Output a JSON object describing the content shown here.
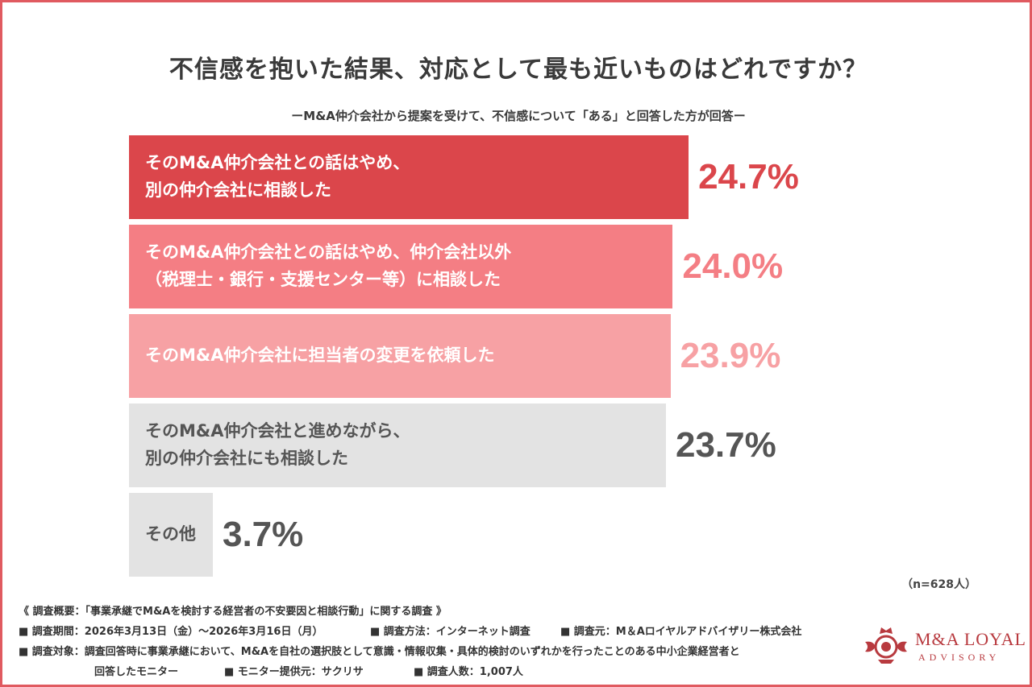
{
  "chart_data": {
    "type": "bar",
    "orientation": "horizontal",
    "title": "不信感を抱いた結果、対応として最も近いものはどれですか？",
    "subtitle": "ーM&A仲介会社から提案を受けて、不信感について「ある」と回答した方が回答ー",
    "categories": [
      "そのM&A仲介会社との話はやめ、\n別の仲介会社に相談した",
      "そのM&A仲介会社との話はやめ、仲介会社以外\n（税理士・銀行・支援センター等）に相談した",
      "そのM&A仲介会社に担当者の変更を依頼した",
      "そのM&A仲介会社と進めながら、\n別の仲介会社にも相談した",
      "その他"
    ],
    "values": [
      24.7,
      24.0,
      23.9,
      23.7,
      3.7
    ],
    "value_labels": [
      "24.7%",
      "24.0%",
      "23.9%",
      "23.7%",
      "3.7%"
    ],
    "bar_colors": [
      "#db464b",
      "#f47e84",
      "#f7a1a4",
      "#e3e3e3",
      "#e3e3e3"
    ],
    "label_colors": [
      "#ffffff",
      "#ffffff",
      "#ffffff",
      "#555555",
      "#555555"
    ],
    "value_colors": [
      "#db464b",
      "#f47e84",
      "#f7a1a4",
      "#555555",
      "#555555"
    ],
    "sample": "（n=628人）"
  },
  "notes": {
    "summary": "《 調査概要：「事業承継でM&Aを検討する経営者の不安要因と相談行動」に関する調査 》",
    "period": "■ 調査期間：2026年3月13日（金）〜2026年3月16日（月）",
    "method": "■ 調査方法：インターネット調査",
    "organizer": "■ 調査元：M＆Aロイヤルアドバイザリー株式会社",
    "target": "■ 調査対象：調査回答時に事業承継において、M&Aを自社の選択肢として意識・情報収集・具体的検討のいずれかを行ったことのある中小企業経営者と",
    "target_cont": "回答したモニター",
    "provider": "■ モニター提供元：サクリサ",
    "count": "■ 調査人数：1,007人"
  },
  "logo": {
    "name": "M&A LOYAL",
    "sub": "ADVISORY"
  }
}
